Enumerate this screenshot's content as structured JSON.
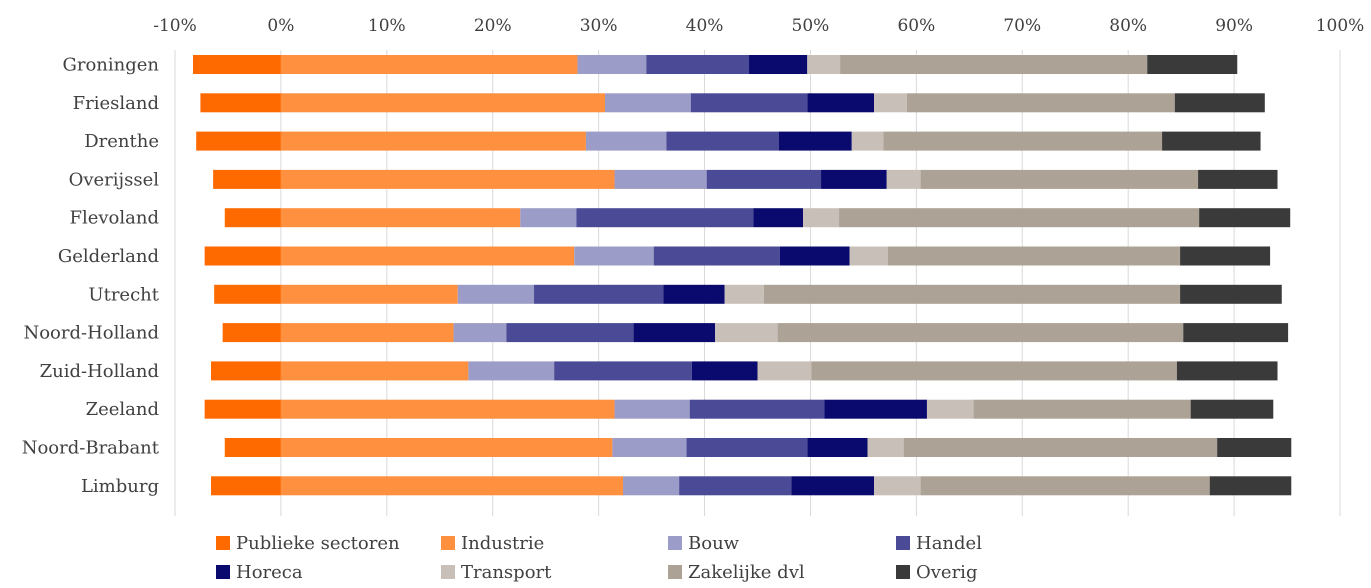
{
  "chart_data": {
    "type": "bar",
    "orientation": "horizontal",
    "stacked": true,
    "title": "",
    "xlabel": "",
    "ylabel": "",
    "xlim": [
      -0.1,
      1.0
    ],
    "x_ticks": [
      -0.1,
      0,
      0.1,
      0.2,
      0.3,
      0.4,
      0.5,
      0.6,
      0.7,
      0.8,
      0.9,
      1.0
    ],
    "x_tick_labels": [
      "-10%",
      "0%",
      "10%",
      "20%",
      "30%",
      "40%",
      "50%",
      "60%",
      "70%",
      "80%",
      "90%",
      "100%"
    ],
    "grid": "vertical",
    "legend_position": "bottom",
    "categories": [
      "Groningen",
      "Friesland",
      "Drenthe",
      "Overijssel",
      "Flevoland",
      "Gelderland",
      "Utrecht",
      "Noord-Holland",
      "Zuid-Holland",
      "Zeeland",
      "Noord-Brabant",
      "Limburg"
    ],
    "series": [
      {
        "name": "Publieke sectoren",
        "color": "#ff6a00",
        "values": [
          -0.083,
          -0.076,
          -0.08,
          -0.064,
          -0.053,
          -0.072,
          -0.063,
          -0.055,
          -0.066,
          -0.072,
          -0.053,
          -0.066
        ]
      },
      {
        "name": "Industrie",
        "color": "#ff9040",
        "values": [
          0.28,
          0.306,
          0.288,
          0.315,
          0.226,
          0.277,
          0.167,
          0.163,
          0.177,
          0.315,
          0.313,
          0.323
        ]
      },
      {
        "name": "Bouw",
        "color": "#9c9cc8",
        "values": [
          0.065,
          0.081,
          0.076,
          0.087,
          0.053,
          0.075,
          0.072,
          0.05,
          0.081,
          0.071,
          0.07,
          0.053
        ]
      },
      {
        "name": "Handel",
        "color": "#4a4a96",
        "values": [
          0.097,
          0.11,
          0.106,
          0.108,
          0.167,
          0.119,
          0.122,
          0.12,
          0.13,
          0.127,
          0.114,
          0.106
        ]
      },
      {
        "name": "Horeca",
        "color": "#0a0a6e",
        "values": [
          0.055,
          0.063,
          0.069,
          0.062,
          0.047,
          0.066,
          0.058,
          0.077,
          0.062,
          0.097,
          0.057,
          0.078
        ]
      },
      {
        "name": "Transport",
        "color": "#c8c0b8",
        "values": [
          0.031,
          0.031,
          0.03,
          0.032,
          0.034,
          0.036,
          0.037,
          0.059,
          0.051,
          0.044,
          0.034,
          0.044
        ]
      },
      {
        "name": "Zakelijke dvl",
        "color": "#aca296",
        "values": [
          0.29,
          0.253,
          0.263,
          0.262,
          0.34,
          0.276,
          0.393,
          0.383,
          0.345,
          0.205,
          0.296,
          0.273
        ]
      },
      {
        "name": "Overig",
        "color": "#3a3a3a",
        "values": [
          0.085,
          0.085,
          0.093,
          0.075,
          0.086,
          0.085,
          0.096,
          0.099,
          0.095,
          0.078,
          0.07,
          0.077
        ]
      }
    ]
  }
}
